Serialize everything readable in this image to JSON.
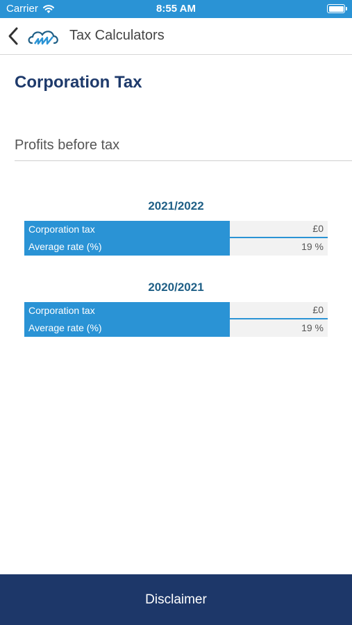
{
  "status_bar": {
    "carrier": "Carrier",
    "time": "8:55 AM"
  },
  "nav": {
    "title": "Tax Calculators"
  },
  "page": {
    "title": "Corporation Tax"
  },
  "input": {
    "placeholder": "Profits before tax",
    "value": ""
  },
  "results": [
    {
      "year": "2021/2022",
      "rows": [
        {
          "label": "Corporation tax",
          "value": "£0"
        },
        {
          "label": "Average rate (%)",
          "value": "19 %"
        }
      ]
    },
    {
      "year": "2020/2021",
      "rows": [
        {
          "label": "Corporation tax",
          "value": "£0"
        },
        {
          "label": "Average rate (%)",
          "value": "19 %"
        }
      ]
    }
  ],
  "footer": {
    "label": "Disclaimer"
  },
  "colors": {
    "accent": "#2a93d5",
    "navy": "#1d3769",
    "year_title": "#1f5f86"
  }
}
